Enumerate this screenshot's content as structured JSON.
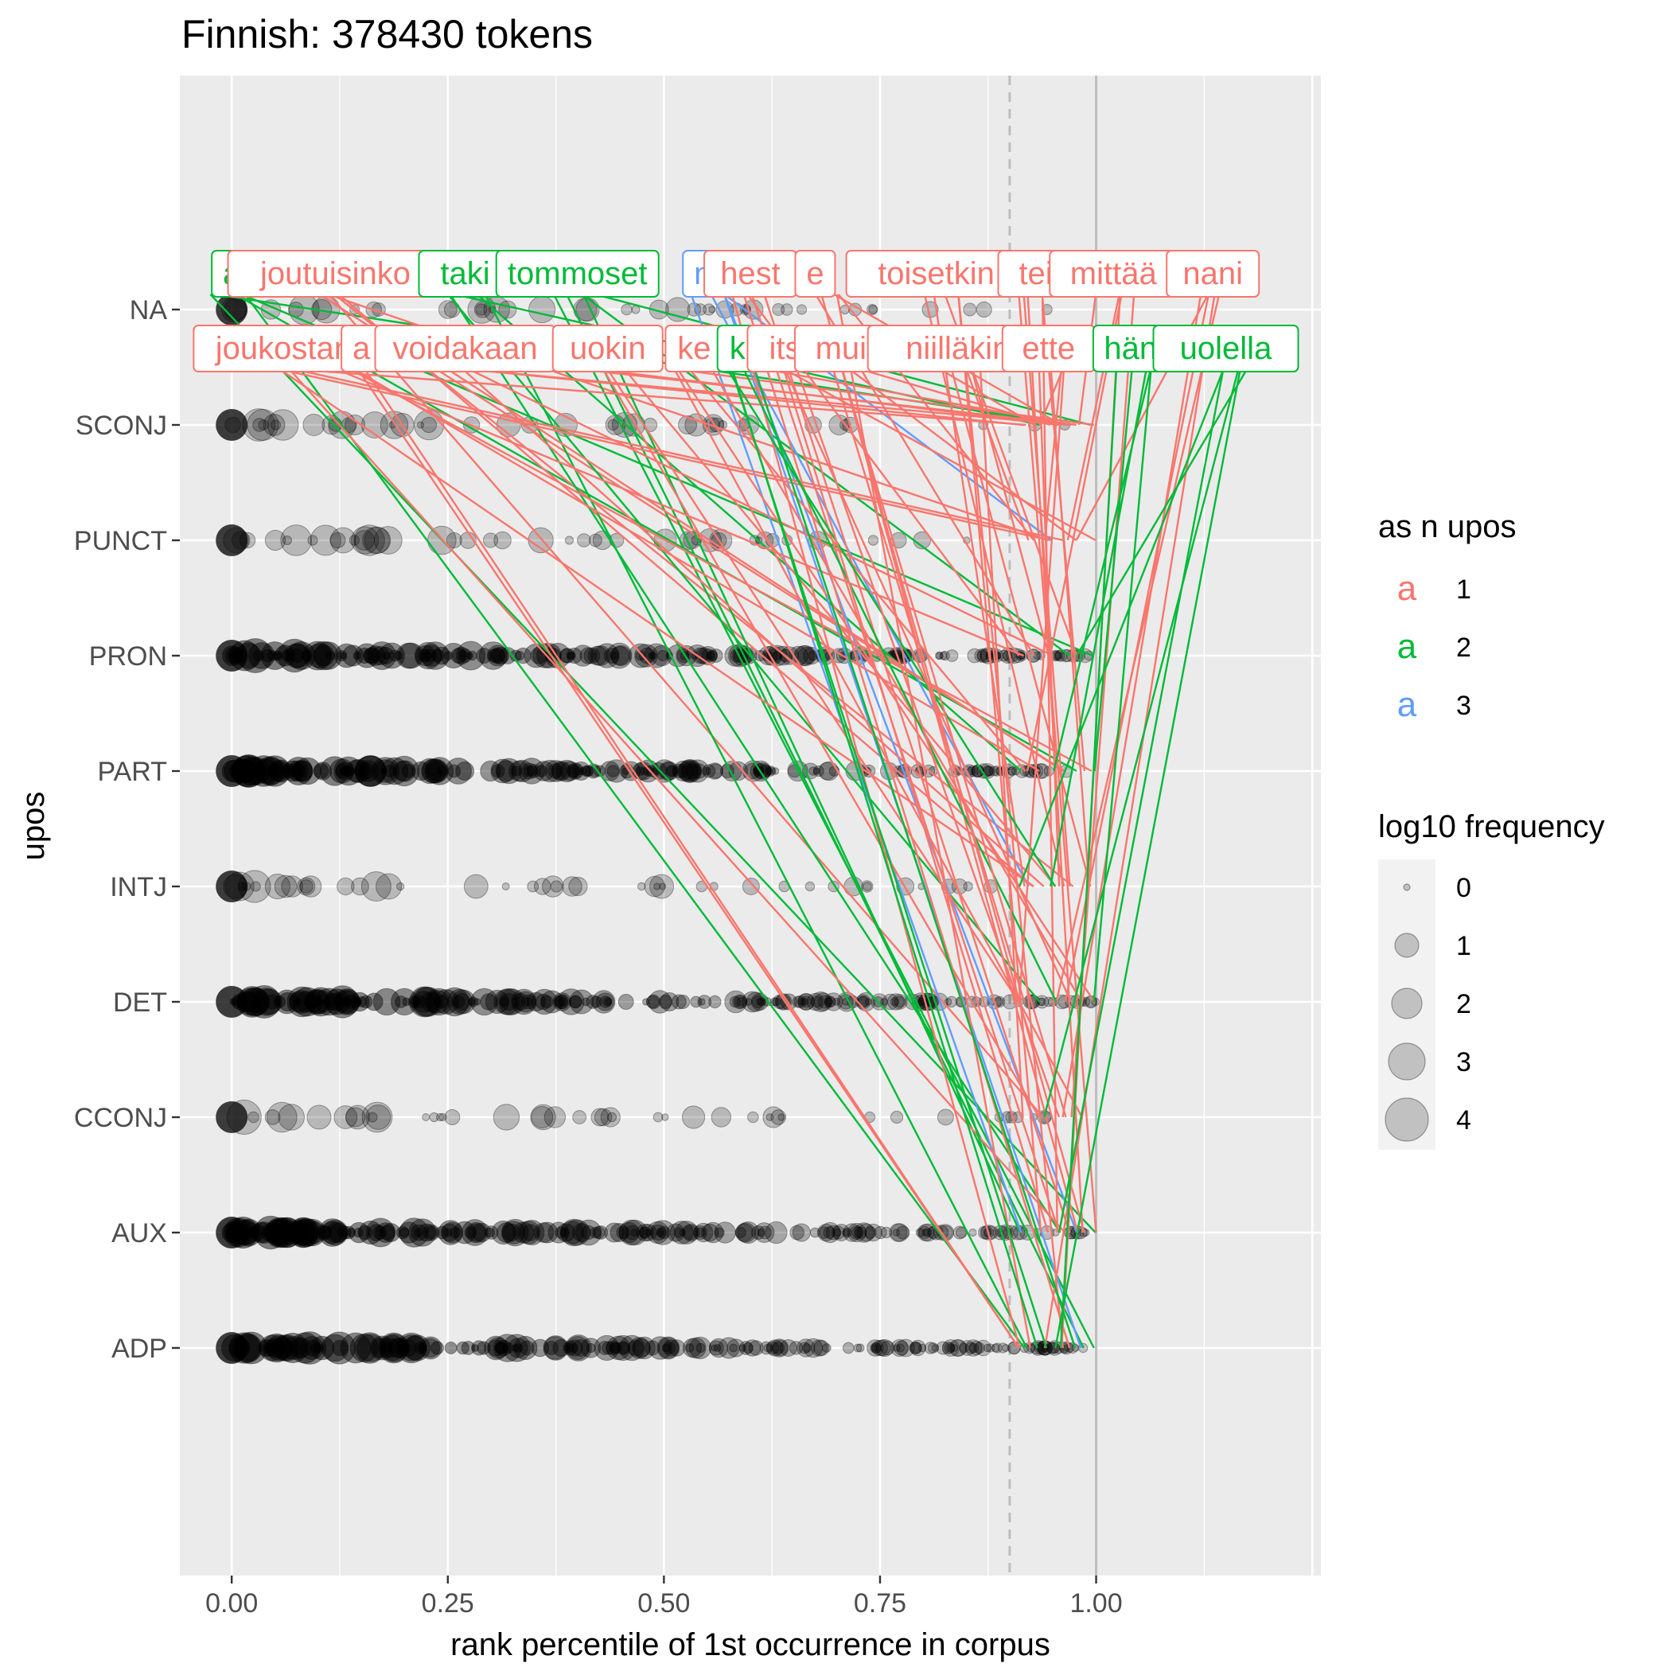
{
  "chart_data": {
    "type": "scatter",
    "title": "Finnish: 378430 tokens",
    "xlabel": "rank percentile of 1st occurrence in corpus",
    "ylabel": "upos",
    "x_ticks": [
      "0.00",
      "0.25",
      "0.50",
      "0.75",
      "1.00"
    ],
    "xlim": [
      -0.06,
      1.26
    ],
    "categories": [
      "NA",
      "SCONJ",
      "PUNCT",
      "PRON",
      "PART",
      "INTJ",
      "DET",
      "CCONJ",
      "AUX",
      "ADP"
    ],
    "reference_lines": [
      {
        "x": 0.9,
        "style": "dashed"
      },
      {
        "x": 1.0,
        "style": "solid"
      }
    ],
    "legend_color": {
      "title": "as n upos",
      "entries": [
        {
          "glyph": "a",
          "label": "1",
          "color": "#F8766D"
        },
        {
          "glyph": "a",
          "label": "2",
          "color": "#00BA38"
        },
        {
          "glyph": "a",
          "label": "3",
          "color": "#619CFF"
        }
      ]
    },
    "legend_size": {
      "title": "log10 frequency",
      "entries": [
        "0",
        "1",
        "2",
        "3",
        "4"
      ]
    },
    "labels_row1": [
      {
        "text": "a",
        "x": 0.0,
        "group": 2
      },
      {
        "text": "joutuisinko",
        "x": 0.12,
        "group": 1
      },
      {
        "text": "taki",
        "x": 0.27,
        "group": 2
      },
      {
        "text": "tommoset",
        "x": 0.4,
        "group": 2
      },
      {
        "text": "n",
        "x": 0.545,
        "group": 3
      },
      {
        "text": "hest",
        "x": 0.6,
        "group": 1
      },
      {
        "text": "e",
        "x": 0.675,
        "group": 1
      },
      {
        "text": "toisetkin",
        "x": 0.815,
        "group": 1
      },
      {
        "text": "tei",
        "x": 0.93,
        "group": 1
      },
      {
        "text": "mittää",
        "x": 1.02,
        "group": 1
      },
      {
        "text": "nani",
        "x": 1.135,
        "group": 1
      }
    ],
    "labels_row2": [
      {
        "text": "joukostan",
        "x": 0.06,
        "group": 1
      },
      {
        "text": "a",
        "x": 0.15,
        "group": 1
      },
      {
        "text": "voidakaan",
        "x": 0.27,
        "group": 1
      },
      {
        "text": "uokin",
        "x": 0.435,
        "group": 1
      },
      {
        "text": "ke",
        "x": 0.535,
        "group": 1
      },
      {
        "text": "k",
        "x": 0.585,
        "group": 2
      },
      {
        "text": "its",
        "x": 0.64,
        "group": 1
      },
      {
        "text": "muitt",
        "x": 0.715,
        "group": 1
      },
      {
        "text": "niilläkin",
        "x": 0.84,
        "group": 1
      },
      {
        "text": "ette",
        "x": 0.945,
        "group": 1
      },
      {
        "text": "häne",
        "x": 1.05,
        "group": 2
      },
      {
        "text": "uolella",
        "x": 1.15,
        "group": 2
      }
    ]
  }
}
